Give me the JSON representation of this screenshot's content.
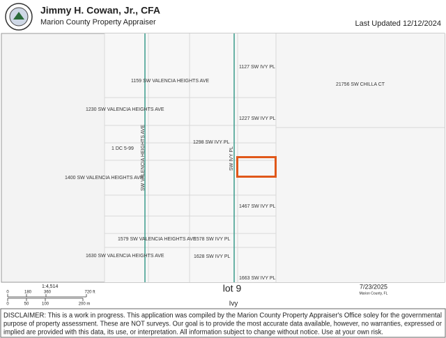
{
  "header": {
    "name": "Jimmy H. Cowan, Jr., CFA",
    "office": "Marion County Property Appraiser",
    "updated": "Last Updated 12/12/2024"
  },
  "map": {
    "labels": [
      "1127 SW IVY PL",
      "1159 SW VALENCIA HEIGHTS AVE",
      "21756 SW CHILLA CT",
      "1230 SW VALENCIA HEIGHTS AVE",
      "1227 SW IVY PL",
      "1298 SW IVY PL",
      "1 DC 5-99",
      "1400 SW VALENCIA HEIGHTS AVE",
      "1467 SW IVY PL",
      "1579 SW VALENCIA HEIGHTS AVE",
      "1578 SW IVY PL",
      "1630 SW VALENCIA HEIGHTS AVE",
      "1628 SW IVY PL",
      "1663 SW IVY PL"
    ],
    "streets": [
      "SW VALENCIA HEIGHTS AVE",
      "SW IVY PL"
    ]
  },
  "footer": {
    "scale": "1:4,514",
    "feet": [
      "0",
      "180",
      "360",
      "720 ft"
    ],
    "meters": [
      "0",
      "50",
      "100",
      "200 m"
    ],
    "title": "lot 9",
    "subtitle": "Ivy",
    "date": "7/23/2025",
    "county": "Marion County, FL",
    "disclaimer": [
      "DISCLAIMER: This is a work in progress. This application was compiled by the Marion County Property Appraiser's Office soley for the governmental",
      "purpose of property assessment. These are NOT surveys. Our goal is to provide the most accurate data available, however, no warranties, expressed or",
      "implied are provided with this data, its use, or interpretation. All information subject to change without notice. Use at your own risk."
    ]
  }
}
